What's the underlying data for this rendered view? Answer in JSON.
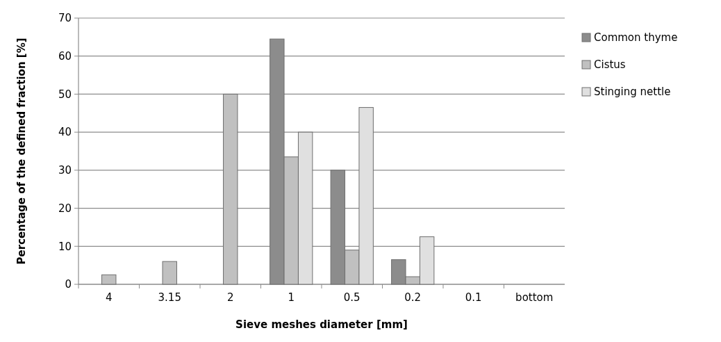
{
  "chart_data": {
    "type": "bar",
    "xlabel": "Sieve meshes diameter [mm]",
    "ylabel": "Percentage of the defined fraction [%]",
    "categories": [
      "4",
      "3.15",
      "2",
      "1",
      "0.5",
      "0.2",
      "0.1",
      "bottom"
    ],
    "series": [
      {
        "name": "Common thyme",
        "color": "#8c8c8c",
        "values": [
          0,
          0,
          0,
          64.5,
          30,
          6.5,
          0,
          0
        ]
      },
      {
        "name": "Cistus",
        "color": "#c0c0c0",
        "values": [
          2.5,
          6,
          50,
          33.5,
          9,
          2,
          0,
          0
        ]
      },
      {
        "name": "Stinging nettle",
        "color": "#e0e0e0",
        "values": [
          0,
          0,
          0,
          40,
          46.5,
          12.5,
          0,
          0
        ]
      }
    ],
    "ylim": [
      0,
      70
    ],
    "yticks": [
      0,
      10,
      20,
      30,
      40,
      50,
      60,
      70
    ],
    "grid": "y",
    "legend": "right"
  }
}
